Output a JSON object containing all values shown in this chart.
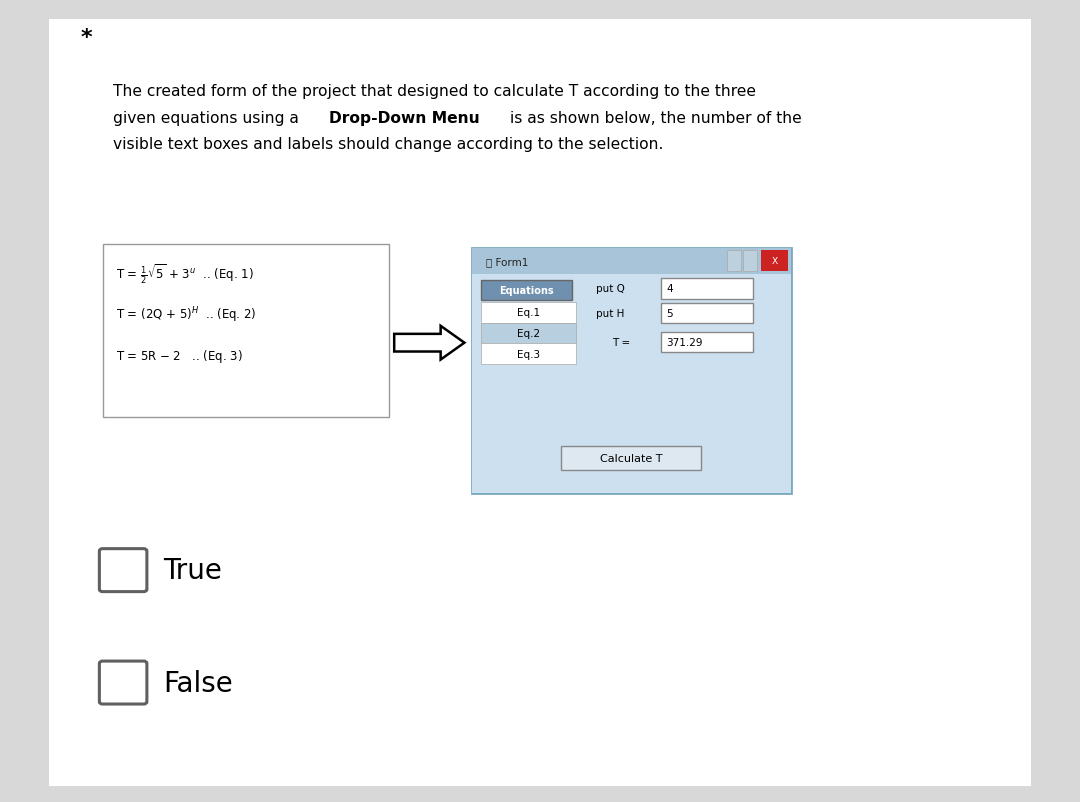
{
  "bg_color": "#d8d8d8",
  "content_bg": "#ffffff",
  "star_text": "*",
  "title_text_line1": "The created form of the project that designed to calculate T according to the three",
  "title_text_line2_pre": "given equations using a ",
  "title_text_bold": "Drop-Down Menu",
  "title_text_line2_post": " is as shown below, the number of the",
  "title_text_line3": "visible text boxes and labels should change according to the selection.",
  "eq1_pre": "T = ",
  "eq1_frac": "1/2",
  "eq1_post": "√5 + 3ᵗ  .. (Eq. 1)",
  "eq2": "T = (2Q + 5)ᴴ  .. (Eq. 2)",
  "eq3": "T = 5R − 2   .. (Eq. 3)",
  "dropdown_items": [
    "Eq.1",
    "Eq.2",
    "Eq.3"
  ],
  "input_q_label": "put Q",
  "input_h_label": "put H",
  "input_q_val": "4",
  "input_h_val": "5",
  "t_label": "T =",
  "t_val": "371.29",
  "calc_btn": "Calculate T",
  "form_title": "Form1",
  "checkbox_color": "#606060",
  "true_label": "True",
  "false_label": "False"
}
